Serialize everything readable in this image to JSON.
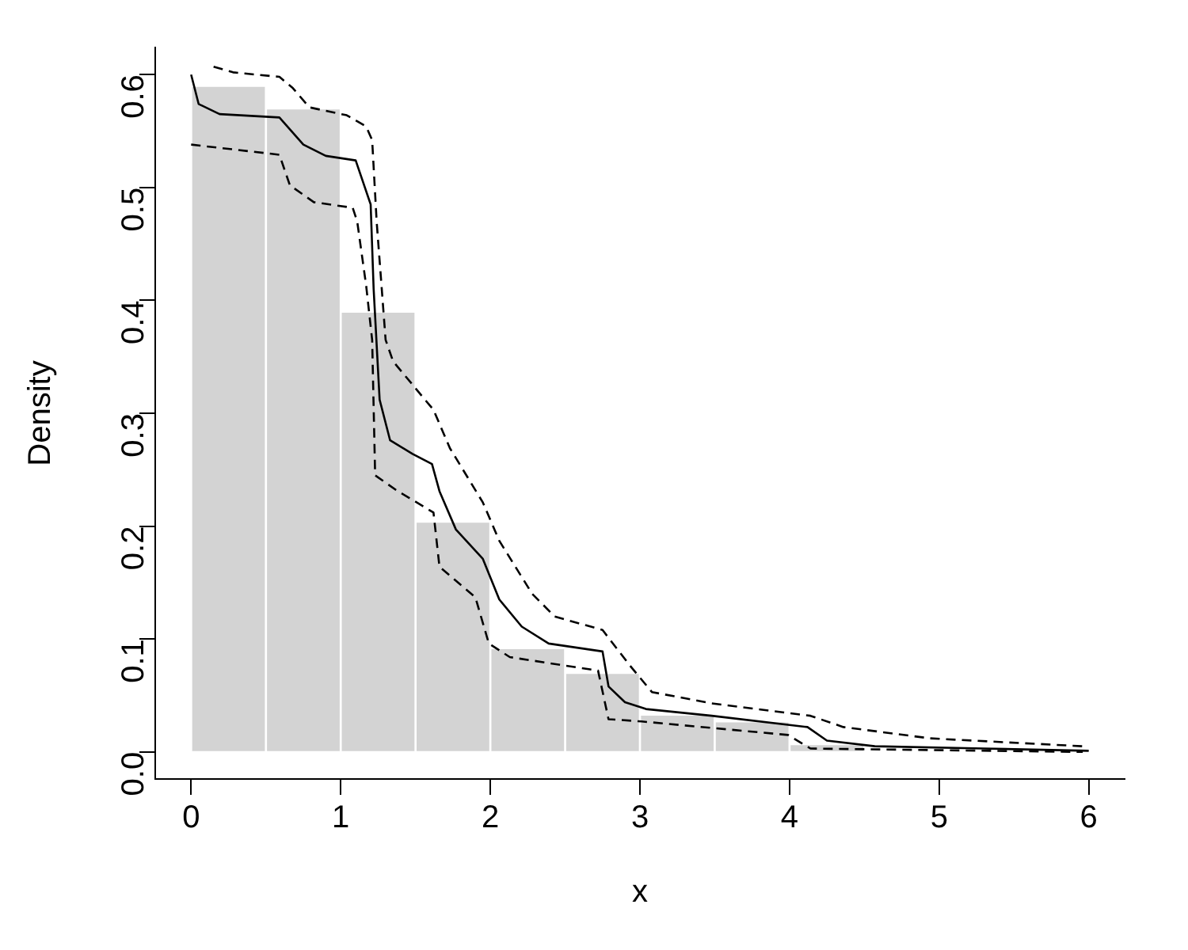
{
  "chart_data": {
    "type": "histogram",
    "xlabel": "x",
    "ylabel": "Density",
    "bins": [
      0,
      0.5,
      1,
      1.5,
      2,
      2.5,
      3,
      3.5,
      4,
      4.5,
      5,
      5.5,
      6
    ],
    "values": [
      0.59,
      0.57,
      0.39,
      0.204,
      0.092,
      0.07,
      0.033,
      0.027,
      0.007,
      0,
      0,
      0
    ],
    "color": "#d3d3d3",
    "series": [
      {
        "type": "line",
        "color": "#000000",
        "line_style": "solid",
        "x": [
          0,
          0.05,
          0.19,
          0.59,
          0.75,
          0.9,
          1.1,
          1.2,
          1.22,
          1.26,
          1.33,
          1.48,
          1.61,
          1.66,
          1.77,
          1.95,
          2.06,
          2.21,
          2.39,
          2.75,
          2.79,
          2.9,
          3.04,
          3.48,
          4.12,
          4.25,
          4.57,
          5.3,
          6
        ],
        "values": [
          0.6,
          0.574,
          0.565,
          0.562,
          0.538,
          0.528,
          0.524,
          0.485,
          0.41,
          0.312,
          0.276,
          0.264,
          0.255,
          0.231,
          0.197,
          0.171,
          0.135,
          0.111,
          0.096,
          0.089,
          0.058,
          0.044,
          0.038,
          0.032,
          0.022,
          0.01,
          0.005,
          0.003,
          0.001
        ]
      },
      {
        "type": "line",
        "color": "#000000",
        "line_style": "dashed",
        "x": [
          0.15,
          0.28,
          0.59,
          0.68,
          0.79,
          1.04,
          1.17,
          1.21,
          1.24,
          1.3,
          1.35,
          1.62,
          1.73,
          1.95,
          2.06,
          2.28,
          2.43,
          2.75,
          2.93,
          3.08,
          3.48,
          4.14,
          4.36,
          4.94,
          5.96
        ],
        "values": [
          0.607,
          0.602,
          0.598,
          0.588,
          0.571,
          0.564,
          0.554,
          0.542,
          0.47,
          0.365,
          0.346,
          0.303,
          0.269,
          0.221,
          0.187,
          0.14,
          0.12,
          0.108,
          0.077,
          0.053,
          0.043,
          0.032,
          0.022,
          0.012,
          0.005
        ]
      },
      {
        "type": "line",
        "color": "#000000",
        "line_style": "dashed",
        "x": [
          0,
          0.59,
          0.66,
          0.82,
          1.08,
          1.11,
          1.17,
          1.21,
          1.23,
          1.37,
          1.62,
          1.66,
          1.9,
          1.99,
          2.13,
          2.72,
          2.79,
          3.01,
          3.99,
          4.14,
          5.96
        ],
        "values": [
          0.538,
          0.529,
          0.502,
          0.487,
          0.482,
          0.47,
          0.413,
          0.365,
          0.245,
          0.232,
          0.212,
          0.164,
          0.137,
          0.096,
          0.084,
          0.072,
          0.029,
          0.027,
          0.015,
          0.003,
          0
        ]
      }
    ],
    "xlim": [
      -0.24,
      6.24
    ],
    "xticks": [
      0,
      1,
      2,
      3,
      4,
      5,
      6
    ],
    "ylim": [
      -0.024,
      0.624
    ],
    "yticks": [
      {
        "value": 0,
        "label": "0.0"
      },
      {
        "value": 0.1,
        "label": "0.1"
      },
      {
        "value": 0.2,
        "label": "0.2"
      },
      {
        "value": 0.3,
        "label": "0.3"
      },
      {
        "value": 0.4,
        "label": "0.4"
      },
      {
        "value": 0.5,
        "label": "0.5"
      },
      {
        "value": 0.6,
        "label": "0.6"
      }
    ],
    "grid": false,
    "legend": false,
    "marker": "none"
  }
}
